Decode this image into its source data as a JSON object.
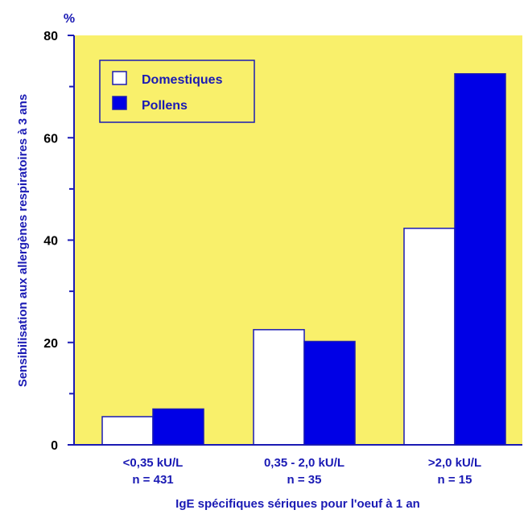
{
  "colors": {
    "plot_background": "#f9f06b",
    "axis_and_text": "#1a1ab4",
    "domestiques_fill": "#ffffff",
    "pollens_fill": "#0000e6"
  },
  "chart_data": {
    "type": "bar",
    "unit_label": "%",
    "ylabel": "Sensibilisation aux allergènes respiratoires à 3 ans",
    "xlabel": "IgE spécifiques sériques pour l'oeuf à 1 an",
    "ylim": [
      0,
      80
    ],
    "yticks": [
      0,
      20,
      40,
      60,
      80
    ],
    "y_minor_step": 10,
    "grid": false,
    "legend_position": "top-left",
    "categories": [
      {
        "label": "<0,35 kU/L",
        "n": "n = 431"
      },
      {
        "label": "0,35 - 2,0 kU/L",
        "n": "n = 35"
      },
      {
        "label": ">2,0 kU/L",
        "n": "n = 15"
      }
    ],
    "series": [
      {
        "name": "Domestiques",
        "color": "#ffffff",
        "values": [
          5.5,
          22.5,
          42.3
        ]
      },
      {
        "name": "Pollens",
        "color": "#0000e6",
        "values": [
          7.0,
          20.2,
          72.5
        ]
      }
    ]
  }
}
